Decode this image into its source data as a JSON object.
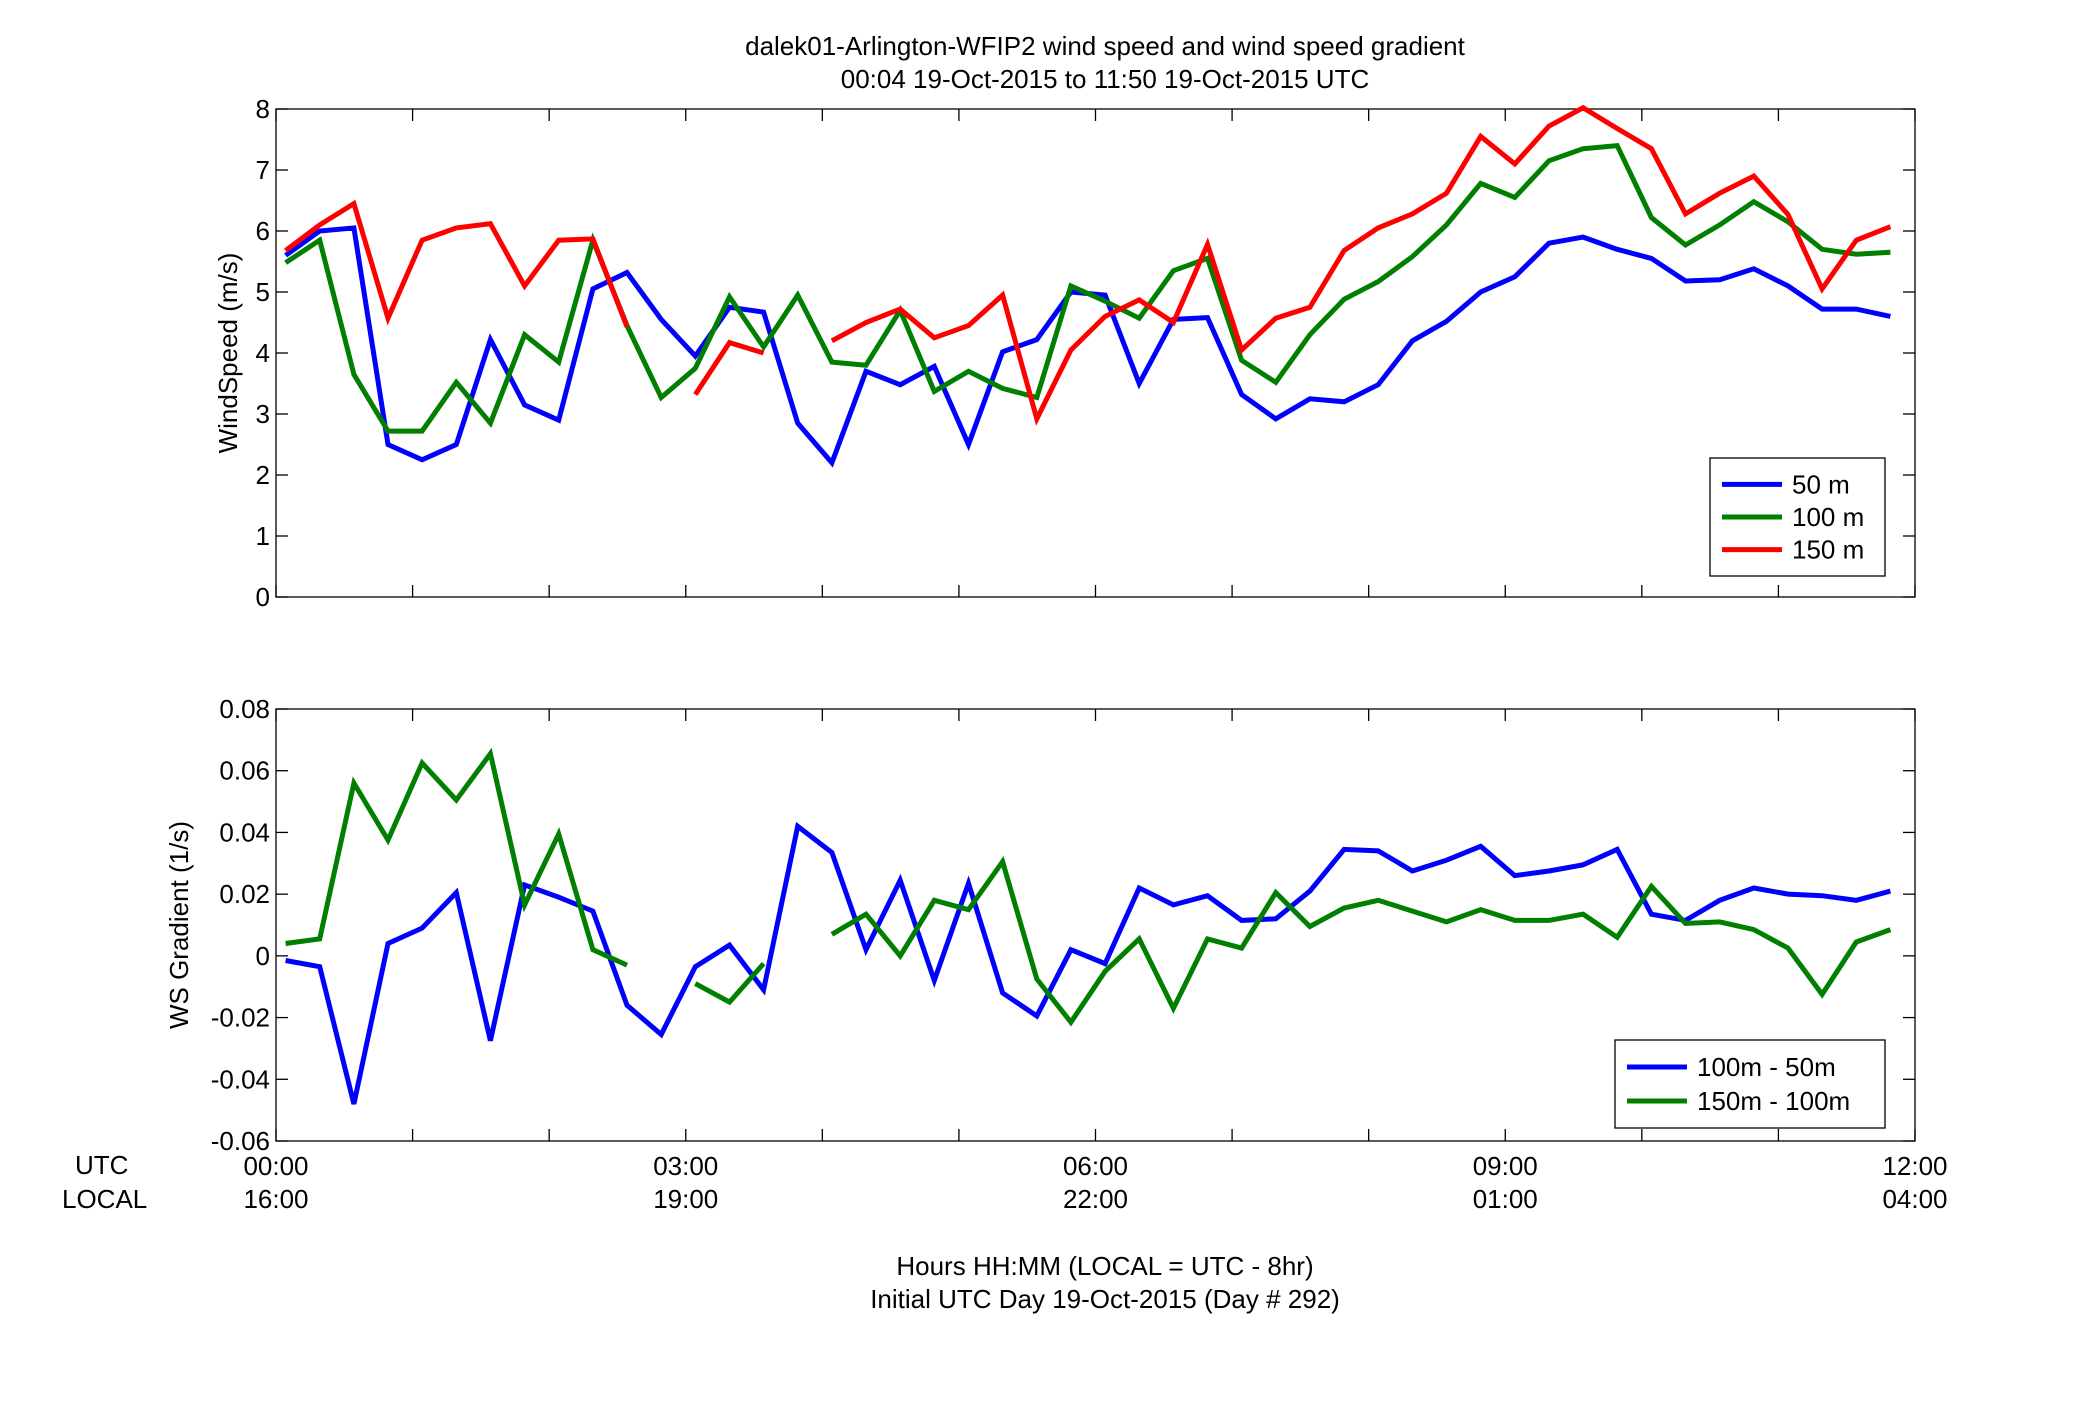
{
  "title": {
    "line1": "dalek01-Arlington-WFIP2  wind speed and wind speed gradient",
    "line2": "00:04 19-Oct-2015 to 11:50 19-Oct-2015  UTC"
  },
  "time_axis": {
    "row_labels": [
      "UTC",
      "LOCAL"
    ],
    "utc_ticks": [
      "00:00",
      "03:00",
      "06:00",
      "09:00",
      "12:00"
    ],
    "local_ticks": [
      "16:00",
      "19:00",
      "22:00",
      "01:00",
      "04:00"
    ],
    "xlabel_line1": "Hours HH:MM  (LOCAL = UTC - 8hr)",
    "xlabel_line2": "Initial UTC Day 19-Oct-2015 (Day # 292)"
  },
  "chart_data": [
    {
      "type": "line",
      "ylabel": "WindSpeed (m/s)",
      "xlim": [
        0,
        12
      ],
      "ylim": [
        0,
        8
      ],
      "yticks": [
        "0",
        "1",
        "2",
        "3",
        "4",
        "5",
        "6",
        "7",
        "8"
      ],
      "x_unit": "hours UTC",
      "legend_position": "bottom-right",
      "series": [
        {
          "name": "50 m",
          "color": "#0000ff",
          "points": [
            [
              0.07,
              5.6
            ],
            [
              0.32,
              6.0
            ],
            [
              0.57,
              6.05
            ],
            [
              0.82,
              2.5
            ],
            [
              1.07,
              2.25
            ],
            [
              1.32,
              2.5
            ],
            [
              1.57,
              4.22
            ],
            [
              1.82,
              3.15
            ],
            [
              2.07,
              2.9
            ],
            [
              2.32,
              5.05
            ],
            [
              2.57,
              5.32
            ],
            [
              2.82,
              4.55
            ],
            [
              3.07,
              3.95
            ],
            [
              3.32,
              4.75
            ],
            [
              3.57,
              4.67
            ],
            [
              3.82,
              2.85
            ],
            [
              4.07,
              2.2
            ],
            [
              4.32,
              3.7
            ],
            [
              4.57,
              3.48
            ],
            [
              4.82,
              3.78
            ],
            [
              5.07,
              2.5
            ],
            [
              5.32,
              4.02
            ],
            [
              5.57,
              4.22
            ],
            [
              5.82,
              5.0
            ],
            [
              6.07,
              4.95
            ],
            [
              6.32,
              3.5
            ],
            [
              6.57,
              4.55
            ],
            [
              6.82,
              4.58
            ],
            [
              7.07,
              3.32
            ],
            [
              7.32,
              2.92
            ],
            [
              7.57,
              3.25
            ],
            [
              7.82,
              3.2
            ],
            [
              8.07,
              3.48
            ],
            [
              8.32,
              4.2
            ],
            [
              8.57,
              4.52
            ],
            [
              8.82,
              5.0
            ],
            [
              9.07,
              5.25
            ],
            [
              9.32,
              5.8
            ],
            [
              9.57,
              5.9
            ],
            [
              9.82,
              5.7
            ],
            [
              10.07,
              5.55
            ],
            [
              10.32,
              5.18
            ],
            [
              10.57,
              5.2
            ],
            [
              10.82,
              5.38
            ],
            [
              11.07,
              5.1
            ],
            [
              11.32,
              4.72
            ],
            [
              11.57,
              4.72
            ],
            [
              11.82,
              4.6
            ]
          ]
        },
        {
          "name": "100 m",
          "color": "#007f00",
          "points": [
            [
              0.07,
              5.48
            ],
            [
              0.32,
              5.85
            ],
            [
              0.57,
              3.65
            ],
            [
              0.82,
              2.72
            ],
            [
              1.07,
              2.72
            ],
            [
              1.32,
              3.52
            ],
            [
              1.57,
              2.85
            ],
            [
              1.82,
              4.3
            ],
            [
              2.07,
              3.85
            ],
            [
              2.32,
              5.85
            ],
            [
              2.57,
              4.45
            ],
            [
              2.82,
              3.27
            ],
            [
              3.07,
              3.75
            ],
            [
              3.32,
              4.92
            ],
            [
              3.57,
              4.1
            ],
            [
              3.82,
              4.95
            ],
            [
              4.07,
              3.85
            ],
            [
              4.32,
              3.8
            ],
            [
              4.57,
              4.7
            ],
            [
              4.82,
              3.37
            ],
            [
              5.07,
              3.7
            ],
            [
              5.32,
              3.42
            ],
            [
              5.57,
              3.27
            ],
            [
              5.82,
              5.1
            ],
            [
              6.07,
              4.85
            ],
            [
              6.32,
              4.57
            ],
            [
              6.57,
              5.35
            ],
            [
              6.82,
              5.55
            ],
            [
              7.07,
              3.88
            ],
            [
              7.32,
              3.52
            ],
            [
              7.57,
              4.3
            ],
            [
              7.82,
              4.88
            ],
            [
              8.07,
              5.17
            ],
            [
              8.32,
              5.58
            ],
            [
              8.57,
              6.1
            ],
            [
              8.82,
              6.78
            ],
            [
              9.07,
              6.55
            ],
            [
              9.32,
              7.15
            ],
            [
              9.57,
              7.35
            ],
            [
              9.82,
              7.4
            ],
            [
              10.07,
              6.22
            ],
            [
              10.32,
              5.77
            ],
            [
              10.57,
              6.1
            ],
            [
              10.82,
              6.48
            ],
            [
              11.07,
              6.15
            ],
            [
              11.32,
              5.7
            ],
            [
              11.57,
              5.62
            ],
            [
              11.82,
              5.65
            ]
          ]
        },
        {
          "name": "150 m",
          "color": "#ff0000",
          "points": [
            [
              0.07,
              5.68
            ],
            [
              0.32,
              6.1
            ],
            [
              0.57,
              6.45
            ],
            [
              0.82,
              4.57
            ],
            [
              1.07,
              5.85
            ],
            [
              1.32,
              6.05
            ],
            [
              1.57,
              6.12
            ],
            [
              1.82,
              5.1
            ],
            [
              2.07,
              5.85
            ],
            [
              2.32,
              5.87
            ],
            [
              2.57,
              4.43
            ],
            null,
            [
              3.07,
              3.32
            ],
            [
              3.32,
              4.17
            ],
            [
              3.57,
              4.0
            ],
            null,
            [
              4.07,
              4.2
            ],
            [
              4.32,
              4.5
            ],
            [
              4.57,
              4.72
            ],
            [
              4.82,
              4.25
            ],
            [
              5.07,
              4.45
            ],
            [
              5.32,
              4.95
            ],
            [
              5.57,
              2.92
            ],
            [
              5.82,
              4.05
            ],
            [
              6.07,
              4.6
            ],
            [
              6.32,
              4.87
            ],
            [
              6.57,
              4.5
            ],
            [
              6.82,
              5.78
            ],
            [
              7.07,
              4.05
            ],
            [
              7.32,
              4.57
            ],
            [
              7.57,
              4.75
            ],
            [
              7.82,
              5.68
            ],
            [
              8.07,
              6.05
            ],
            [
              8.32,
              6.28
            ],
            [
              8.57,
              6.62
            ],
            [
              8.82,
              7.55
            ],
            [
              9.07,
              7.1
            ],
            [
              9.32,
              7.72
            ],
            [
              9.57,
              8.02
            ],
            [
              9.82,
              7.68
            ],
            [
              10.07,
              7.35
            ],
            [
              10.32,
              6.28
            ],
            [
              10.57,
              6.62
            ],
            [
              10.82,
              6.9
            ],
            [
              11.07,
              6.27
            ],
            [
              11.32,
              5.05
            ],
            [
              11.57,
              5.85
            ],
            [
              11.82,
              6.07
            ]
          ]
        }
      ]
    },
    {
      "type": "line",
      "ylabel": "WS Gradient (1/s)",
      "xlim": [
        0,
        12
      ],
      "ylim": [
        -0.06,
        0.08
      ],
      "yticks": [
        "-0.06",
        "-0.04",
        "-0.02",
        "0",
        "0.02",
        "0.04",
        "0.06",
        "0.08"
      ],
      "x_unit": "hours UTC",
      "legend_position": "bottom-right",
      "series": [
        {
          "name": "100m - 50m",
          "color": "#0000ff",
          "points": [
            [
              0.07,
              -0.0015
            ],
            [
              0.32,
              -0.0035
            ],
            [
              0.57,
              -0.048
            ],
            [
              0.82,
              0.004
            ],
            [
              1.07,
              0.009
            ],
            [
              1.32,
              0.0205
            ],
            [
              1.57,
              -0.0275
            ],
            [
              1.82,
              0.023
            ],
            [
              2.07,
              0.019
            ],
            [
              2.32,
              0.0145
            ],
            [
              2.57,
              -0.016
            ],
            [
              2.82,
              -0.0255
            ],
            [
              3.07,
              -0.0035
            ],
            [
              3.32,
              0.0035
            ],
            [
              3.57,
              -0.011
            ],
            [
              3.82,
              0.042
            ],
            [
              4.07,
              0.0335
            ],
            [
              4.32,
              0.002
            ],
            [
              4.57,
              0.0245
            ],
            [
              4.82,
              -0.008
            ],
            [
              5.07,
              0.0235
            ],
            [
              5.32,
              -0.012
            ],
            [
              5.57,
              -0.0195
            ],
            [
              5.82,
              0.002
            ],
            [
              6.07,
              -0.0025
            ],
            [
              6.32,
              0.022
            ],
            [
              6.57,
              0.0165
            ],
            [
              6.82,
              0.0195
            ],
            [
              7.07,
              0.0115
            ],
            [
              7.32,
              0.012
            ],
            [
              7.57,
              0.021
            ],
            [
              7.82,
              0.0345
            ],
            [
              8.07,
              0.034
            ],
            [
              8.32,
              0.0275
            ],
            [
              8.57,
              0.031
            ],
            [
              8.82,
              0.0355
            ],
            [
              9.07,
              0.026
            ],
            [
              9.32,
              0.0275
            ],
            [
              9.57,
              0.0295
            ],
            [
              9.82,
              0.0345
            ],
            [
              10.07,
              0.0135
            ],
            [
              10.32,
              0.0115
            ],
            [
              10.57,
              0.018
            ],
            [
              10.82,
              0.022
            ],
            [
              11.07,
              0.02
            ],
            [
              11.32,
              0.0195
            ],
            [
              11.57,
              0.018
            ],
            [
              11.82,
              0.021
            ]
          ]
        },
        {
          "name": "150m - 100m",
          "color": "#007f00",
          "points": [
            [
              0.07,
              0.004
            ],
            [
              0.32,
              0.0055
            ],
            [
              0.57,
              0.056
            ],
            [
              0.82,
              0.0375
            ],
            [
              1.07,
              0.0625
            ],
            [
              1.32,
              0.0505
            ],
            [
              1.57,
              0.0655
            ],
            [
              1.82,
              0.0165
            ],
            [
              2.07,
              0.0395
            ],
            [
              2.32,
              0.002
            ],
            [
              2.57,
              -0.003
            ],
            null,
            [
              3.07,
              -0.009
            ],
            [
              3.32,
              -0.015
            ],
            [
              3.57,
              -0.0025
            ],
            null,
            [
              4.07,
              0.007
            ],
            [
              4.32,
              0.0135
            ],
            [
              4.57,
              0.0
            ],
            [
              4.82,
              0.018
            ],
            [
              5.07,
              0.015
            ],
            [
              5.32,
              0.0305
            ],
            [
              5.57,
              -0.0075
            ],
            [
              5.82,
              -0.0215
            ],
            [
              6.07,
              -0.005
            ],
            [
              6.32,
              0.0055
            ],
            [
              6.57,
              -0.017
            ],
            [
              6.82,
              0.0055
            ],
            [
              7.07,
              0.0025
            ],
            [
              7.32,
              0.0205
            ],
            [
              7.57,
              0.0095
            ],
            [
              7.82,
              0.0155
            ],
            [
              8.07,
              0.018
            ],
            [
              8.32,
              0.0145
            ],
            [
              8.57,
              0.011
            ],
            [
              8.82,
              0.015
            ],
            [
              9.07,
              0.0115
            ],
            [
              9.32,
              0.0115
            ],
            [
              9.57,
              0.0135
            ],
            [
              9.82,
              0.006
            ],
            [
              10.07,
              0.0225
            ],
            [
              10.32,
              0.0105
            ],
            [
              10.57,
              0.011
            ],
            [
              10.82,
              0.0085
            ],
            [
              11.07,
              0.0025
            ],
            [
              11.32,
              -0.0125
            ],
            [
              11.57,
              0.0045
            ],
            [
              11.82,
              0.0085
            ]
          ]
        }
      ]
    }
  ]
}
